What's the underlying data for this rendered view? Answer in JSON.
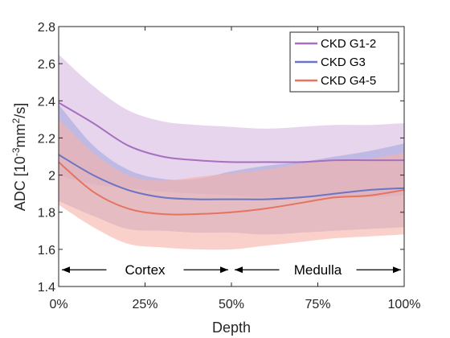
{
  "chart_data": {
    "type": "line",
    "xlabel": "Depth",
    "ylabel": "ADC [10",
    "ylabel_exp1": "-3",
    "ylabel_mid": "mm",
    "ylabel_exp2": "2",
    "ylabel_end": "/s]",
    "xlim": [
      0,
      100
    ],
    "ylim": [
      1.4,
      2.8
    ],
    "x_ticks": [
      0,
      25,
      50,
      75,
      100
    ],
    "x_tick_labels": [
      "0%",
      "25%",
      "50%",
      "75%",
      "100%"
    ],
    "y_ticks": [
      1.4,
      1.6,
      1.8,
      2.0,
      2.2,
      2.4,
      2.6,
      2.8
    ],
    "y_tick_labels": [
      "1.4",
      "1.6",
      "1.8",
      "2",
      "2.2",
      "2.4",
      "2.6",
      "2.8"
    ],
    "legend_position": "top-right",
    "x": [
      0,
      10,
      20,
      30,
      40,
      50,
      60,
      70,
      80,
      90,
      100
    ],
    "series": [
      {
        "name": "CKD G1-2",
        "color": "#a66fbf",
        "fill_color": "#d7b9e3",
        "values": [
          2.39,
          2.28,
          2.16,
          2.1,
          2.08,
          2.07,
          2.07,
          2.07,
          2.08,
          2.08,
          2.08
        ],
        "upper": [
          2.65,
          2.48,
          2.35,
          2.29,
          2.27,
          2.26,
          2.25,
          2.26,
          2.27,
          2.27,
          2.28
        ],
        "lower": [
          2.0,
          1.95,
          1.93,
          1.91,
          1.9,
          1.89,
          1.88,
          1.88,
          1.88,
          1.88,
          1.89
        ]
      },
      {
        "name": "CKD G3",
        "color": "#6c74c4",
        "fill_color": "#a5a8dc",
        "values": [
          2.11,
          2.0,
          1.92,
          1.88,
          1.87,
          1.87,
          1.87,
          1.88,
          1.9,
          1.92,
          1.93
        ],
        "upper": [
          2.38,
          2.16,
          2.03,
          1.98,
          1.98,
          2.02,
          2.05,
          2.07,
          2.1,
          2.13,
          2.17
        ],
        "lower": [
          1.86,
          1.78,
          1.71,
          1.7,
          1.69,
          1.69,
          1.68,
          1.69,
          1.7,
          1.71,
          1.72
        ]
      },
      {
        "name": "CKD G4-5",
        "color": "#e5745f",
        "fill_color": "#f7b3a6",
        "values": [
          2.07,
          1.91,
          1.82,
          1.79,
          1.79,
          1.8,
          1.82,
          1.85,
          1.88,
          1.89,
          1.92
        ],
        "upper": [
          2.3,
          2.12,
          2.0,
          1.97,
          1.99,
          2.01,
          2.03,
          2.06,
          2.08,
          2.09,
          2.12
        ],
        "lower": [
          1.84,
          1.72,
          1.63,
          1.61,
          1.6,
          1.6,
          1.62,
          1.64,
          1.66,
          1.67,
          1.68
        ]
      }
    ],
    "annotations": [
      {
        "label": "Cortex",
        "x_start": 0,
        "x_end": 50
      },
      {
        "label": "Medulla",
        "x_start": 50,
        "x_end": 100
      }
    ],
    "annotation_y": 1.49,
    "colors": {
      "axis": "#262626",
      "background": "#ffffff"
    }
  }
}
